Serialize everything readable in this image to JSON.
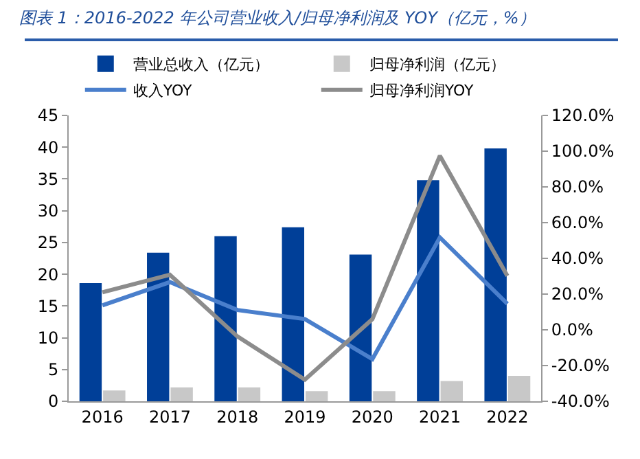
{
  "chart_data": {
    "type": "bar",
    "title": "图表 1：2016-2022 年公司营业收入/归母净利润及 YOY（亿元，%）",
    "categories": [
      "2016",
      "2017",
      "2018",
      "2019",
      "2020",
      "2021",
      "2022"
    ],
    "series": [
      {
        "name": "营业总收入（亿元）",
        "color": "#003f98",
        "values": [
          18.6,
          23.4,
          26.0,
          27.4,
          23.1,
          34.8,
          39.8
        ]
      },
      {
        "name": "归母净利润（亿元）",
        "color": "#c8c8c8",
        "values": [
          1.7,
          2.2,
          2.2,
          1.6,
          1.6,
          3.2,
          4.0
        ]
      },
      {
        "name": "收入YOY",
        "type": "line",
        "axis": "y2",
        "color": "#4a7fcc",
        "values": [
          13.7,
          26.7,
          11.1,
          6.0,
          -16.4,
          51.7,
          14.6
        ]
      },
      {
        "name": "归母净利润YOY",
        "type": "line",
        "axis": "y2",
        "color": "#8c8c8c",
        "values": [
          21.0,
          30.8,
          -3.7,
          -27.9,
          6.0,
          97.4,
          30.2
        ]
      }
    ],
    "ylim": [
      0,
      45
    ],
    "yticks": [
      0,
      5,
      10,
      15,
      20,
      25,
      30,
      35,
      40,
      45
    ],
    "y2lim": [
      -40,
      120
    ],
    "y2ticks": [
      {
        "value": -40,
        "label": "-40.0%"
      },
      {
        "value": -20,
        "label": "-20.0%"
      },
      {
        "value": 0,
        "label": "0.0%"
      },
      {
        "value": 20,
        "label": "20.0%"
      },
      {
        "value": 40,
        "label": "40.0%"
      },
      {
        "value": 60,
        "label": "60.0%"
      },
      {
        "value": 80,
        "label": "80.0%"
      },
      {
        "value": 100,
        "label": "100.0%"
      },
      {
        "value": 120,
        "label": "120.0%"
      }
    ],
    "grid": false,
    "legend": "top",
    "marker": "none",
    "line_style": "solid"
  }
}
